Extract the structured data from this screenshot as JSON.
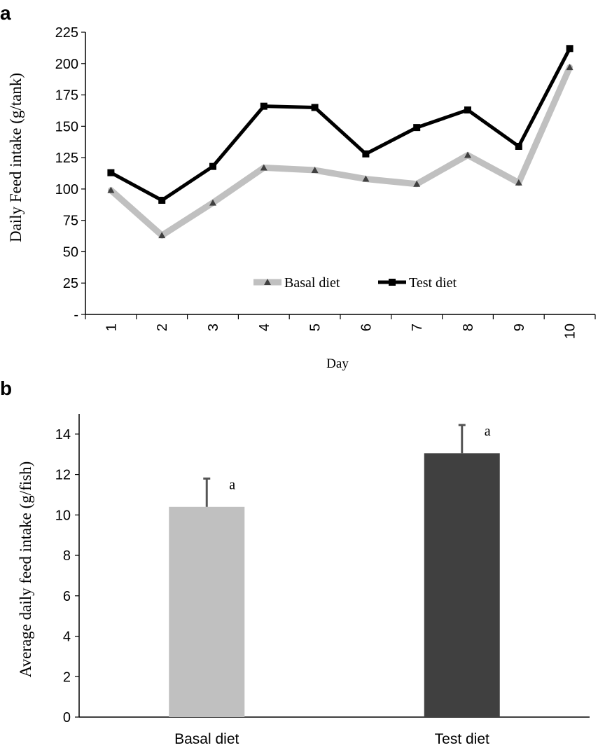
{
  "chart_data": [
    {
      "panel_label": "a",
      "type": "line",
      "title": "",
      "xlabel": "Day",
      "ylabel": "Daily Feed intake (g/tank)",
      "categories": [
        "1",
        "2",
        "3",
        "4",
        "5",
        "6",
        "7",
        "8",
        "9",
        "10"
      ],
      "yticks": [
        "-",
        "25",
        "50",
        "75",
        "100",
        "125",
        "150",
        "175",
        "200",
        "225"
      ],
      "ylim": [
        0,
        225
      ],
      "legend_position": "bottom-center",
      "series": [
        {
          "name": "Basal diet",
          "color": "#c0c0c0",
          "marker": "triangle",
          "marker_color": "#404040",
          "values": [
            99,
            63,
            89,
            117,
            115,
            108,
            104,
            127,
            105,
            197
          ]
        },
        {
          "name": "Test diet",
          "color": "#000000",
          "marker": "square",
          "marker_color": "#000000",
          "values": [
            113,
            91,
            118,
            166,
            165,
            128,
            149,
            163,
            134,
            212
          ]
        }
      ]
    },
    {
      "panel_label": "b",
      "type": "bar",
      "title": "",
      "xlabel": "",
      "ylabel": "Average daily feed intake (g/fish)",
      "categories": [
        "Basal diet",
        "Test diet"
      ],
      "values": [
        10.4,
        13.05
      ],
      "errors": [
        1.4,
        1.4
      ],
      "sig_letters": [
        "a",
        "a"
      ],
      "colors": [
        "#c0c0c0",
        "#404040"
      ],
      "yticks": [
        "0",
        "2",
        "4",
        "6",
        "8",
        "10",
        "12",
        "14"
      ],
      "ylim": [
        0,
        15
      ]
    }
  ]
}
